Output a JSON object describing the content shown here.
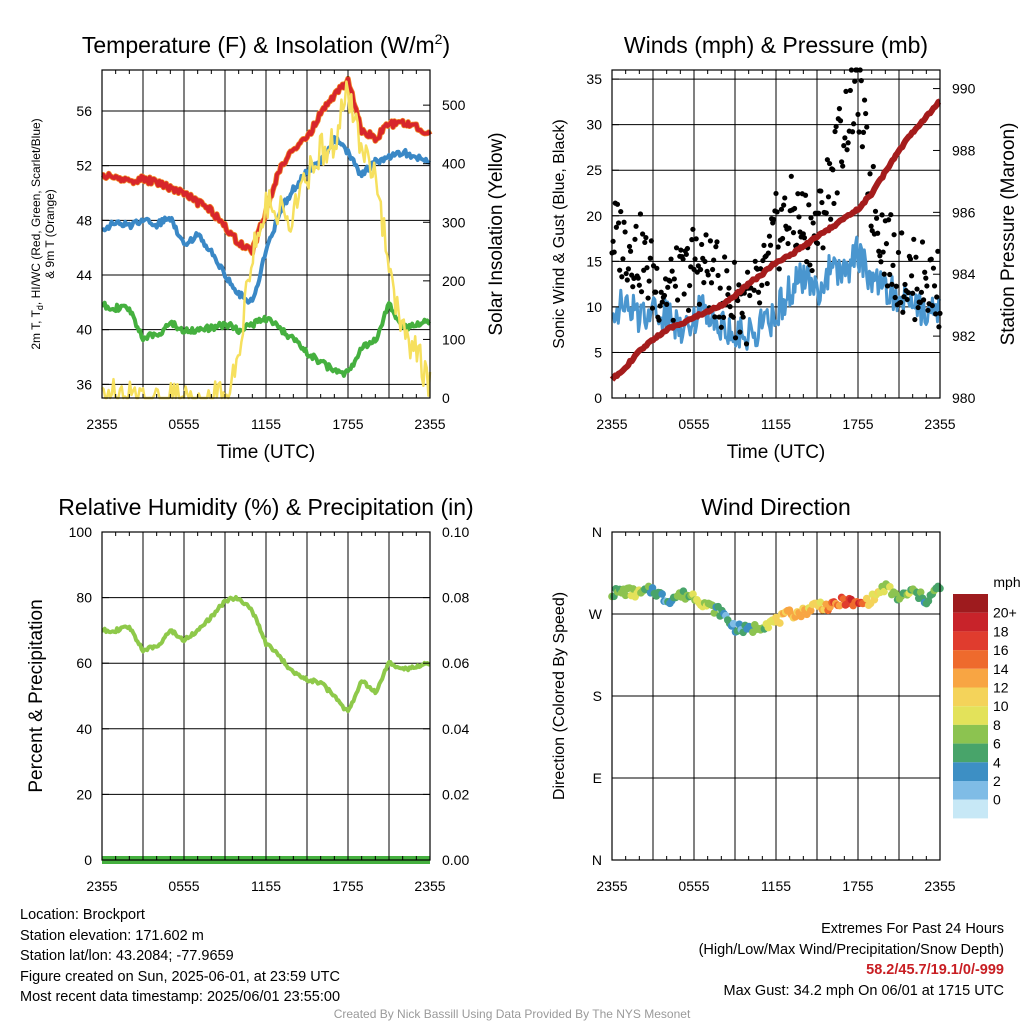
{
  "colors": {
    "temperature": "#d7262b",
    "dewpoint": "#45b03f",
    "heat_index": "#d7262b",
    "wind_chill": "#3a88c6",
    "temp_9m": "#f28c28",
    "insolation": "#f6e05e",
    "sonic_wind": "#4a96cf",
    "gust": "#000000",
    "pressure": "#a51c1c",
    "humidity": "#8ec94a",
    "precipitation": "#45b03f"
  },
  "chart_data": [
    {
      "id": "temperature",
      "type": "line",
      "title": "Temperature (F) & Insolation (W/m²)",
      "title_main": "Temperature (F) & Insolation (W/m",
      "title_sup": "2",
      "title_end": ")",
      "xlabel": "Time (UTC)",
      "ylabel_lines": [
        "2m T, T",
        "d",
        ", HI/WC (Red, Green, Scarlet/Blue)",
        "& 9m T (Orange)"
      ],
      "ylabel_right": "Solar Insolation (Yellow)",
      "x_tick_labels": [
        "2355",
        "0555",
        "1155",
        "1755",
        "2355"
      ],
      "x_range_hours": [
        0,
        24
      ],
      "ylim": [
        35,
        59
      ],
      "y_ticks": [
        36,
        40,
        44,
        48,
        52,
        56
      ],
      "ylim_right": [
        0,
        560
      ],
      "y_ticks_right": [
        0,
        100,
        200,
        300,
        400,
        500
      ],
      "grid": true,
      "series": [
        {
          "key": "temperature",
          "axis": "left",
          "x": [
            0,
            1,
            2,
            3,
            4,
            5,
            6,
            7,
            8,
            9,
            10,
            11,
            12,
            13,
            14,
            15,
            16,
            17,
            18,
            19,
            20,
            21,
            22,
            23,
            24
          ],
          "values": [
            51.3,
            51.1,
            50.9,
            51.0,
            50.8,
            50.4,
            50.0,
            49.3,
            48.7,
            47.6,
            46.3,
            45.8,
            48.6,
            51.8,
            53.2,
            54.0,
            55.8,
            57.2,
            58.2,
            54.6,
            54.0,
            55.0,
            55.1,
            54.8,
            54.3
          ]
        },
        {
          "key": "wind_chill",
          "axis": "left",
          "x": [
            0,
            1,
            2,
            3,
            4,
            5,
            6,
            7,
            8,
            9,
            10,
            11,
            12,
            13,
            14,
            15,
            16,
            17,
            18,
            19,
            20,
            21,
            22,
            23,
            24
          ],
          "values": [
            47.4,
            47.8,
            47.6,
            48.1,
            47.7,
            48.2,
            46.3,
            46.9,
            45.8,
            44.0,
            42.6,
            42.0,
            45.7,
            48.6,
            50.3,
            51.5,
            52.3,
            54.0,
            53.0,
            51.3,
            52.3,
            52.6,
            53.0,
            52.6,
            52.2
          ]
        },
        {
          "key": "dewpoint",
          "axis": "left",
          "x": [
            0,
            1,
            2,
            3,
            4,
            5,
            6,
            7,
            8,
            9,
            10,
            11,
            12,
            13,
            14,
            15,
            16,
            17,
            18,
            19,
            20,
            21,
            22,
            23,
            24
          ],
          "values": [
            41.8,
            41.6,
            41.5,
            39.4,
            39.6,
            40.5,
            39.9,
            40.0,
            40.1,
            40.4,
            40.0,
            40.4,
            40.8,
            40.1,
            39.3,
            38.3,
            37.6,
            37.0,
            36.8,
            38.8,
            39.2,
            41.8,
            40.1,
            40.4,
            40.6
          ]
        },
        {
          "key": "insolation",
          "axis": "right",
          "x": [
            0,
            1,
            2,
            3,
            4,
            5,
            6,
            7,
            8,
            9,
            10,
            11,
            12,
            13,
            14,
            15,
            16,
            17,
            18,
            19,
            20,
            21,
            22,
            23,
            24
          ],
          "values": [
            30,
            0,
            0,
            0,
            0,
            0,
            0,
            0,
            0,
            5,
            80,
            250,
            330,
            320,
            310,
            380,
            420,
            440,
            520,
            420,
            400,
            210,
            120,
            80,
            20
          ]
        }
      ]
    },
    {
      "id": "winds",
      "type": "line",
      "title": "Winds (mph) & Pressure (mb)",
      "xlabel": "Time (UTC)",
      "ylabel": "Sonic Wind & Gust (Blue, Black)",
      "ylabel_right": "Station Pressure (Maroon)",
      "x_tick_labels": [
        "2355",
        "0555",
        "1155",
        "1755",
        "2355"
      ],
      "x_range_hours": [
        0,
        24
      ],
      "ylim": [
        0,
        36
      ],
      "y_ticks": [
        0,
        5,
        10,
        15,
        20,
        25,
        30,
        35
      ],
      "ylim_right": [
        980,
        990.6
      ],
      "y_ticks_right": [
        980,
        982,
        984,
        986,
        988,
        990
      ],
      "grid": true,
      "series": [
        {
          "key": "sonic_wind",
          "axis": "left",
          "x": [
            0,
            1,
            2,
            3,
            4,
            5,
            6,
            7,
            8,
            9,
            10,
            11,
            12,
            13,
            14,
            15,
            16,
            17,
            18,
            19,
            20,
            21,
            22,
            23,
            24
          ],
          "values": [
            10,
            10,
            9,
            10,
            9,
            8,
            9,
            10,
            8,
            7,
            7,
            8,
            9,
            12,
            13,
            12,
            14,
            14,
            16,
            13,
            12,
            11,
            10,
            10,
            10
          ]
        },
        {
          "key": "gust",
          "axis": "left",
          "style": "points",
          "x": [
            0,
            1,
            2,
            3,
            4,
            5,
            6,
            7,
            8,
            9,
            10,
            11,
            12,
            13,
            14,
            15,
            16,
            17,
            18,
            19,
            20,
            21,
            22,
            23,
            24
          ],
          "values": [
            18,
            17,
            16,
            13,
            12,
            12,
            15,
            14,
            12,
            11,
            10,
            12,
            18,
            20,
            19,
            18,
            24,
            30,
            34.2,
            22,
            17,
            14,
            13,
            13,
            12
          ]
        },
        {
          "key": "pressure",
          "axis": "right",
          "x": [
            0,
            1,
            2,
            3,
            4,
            5,
            6,
            7,
            8,
            9,
            10,
            11,
            12,
            13,
            14,
            15,
            16,
            17,
            18,
            19,
            20,
            21,
            22,
            23,
            24
          ],
          "values": [
            980.6,
            981.0,
            981.5,
            981.9,
            982.2,
            982.4,
            982.6,
            982.8,
            983.0,
            983.3,
            983.7,
            984.0,
            984.4,
            984.6,
            984.9,
            985.2,
            985.5,
            985.8,
            986.1,
            986.6,
            987.3,
            988.0,
            988.6,
            989.1,
            989.6
          ]
        }
      ]
    },
    {
      "id": "humidity",
      "type": "line",
      "title": "Relative Humidity (%) & Precipitation (in)",
      "ylabel": "Percent & Precipitation",
      "x_tick_labels": [
        "2355",
        "0555",
        "1155",
        "1755",
        "2355"
      ],
      "x_range_hours": [
        0,
        24
      ],
      "ylim": [
        0,
        100
      ],
      "y_ticks": [
        0,
        20,
        40,
        60,
        80,
        100
      ],
      "ylim_right": [
        0,
        0.1
      ],
      "y_ticks_right": [
        "0.00",
        "0.02",
        "0.04",
        "0.06",
        "0.08",
        "0.10"
      ],
      "grid": true,
      "series": [
        {
          "key": "humidity",
          "axis": "left",
          "x": [
            0,
            1,
            2,
            3,
            4,
            5,
            6,
            7,
            8,
            9,
            10,
            11,
            12,
            13,
            14,
            15,
            16,
            17,
            18,
            19,
            20,
            21,
            22,
            23,
            24
          ],
          "values": [
            70,
            70,
            71,
            64,
            65,
            70,
            67,
            70,
            74,
            79,
            80,
            76,
            66,
            62,
            57,
            55,
            54,
            50,
            45,
            55,
            51,
            60,
            58,
            59,
            60
          ]
        },
        {
          "key": "precipitation",
          "axis": "right",
          "x": [
            0,
            24
          ],
          "values": [
            0,
            0
          ]
        }
      ]
    },
    {
      "id": "wind_direction",
      "type": "scatter",
      "title": "Wind Direction",
      "ylabel": "Direction (Colored By Speed)",
      "x_tick_labels": [
        "2355",
        "0555",
        "1155",
        "1755",
        "2355"
      ],
      "x_range_hours": [
        0,
        24
      ],
      "ylim": [
        0,
        360
      ],
      "y_ticks": [
        0,
        90,
        180,
        270,
        360
      ],
      "y_tick_labels": [
        "N",
        "E",
        "S",
        "W",
        "N"
      ],
      "grid": true,
      "series": [
        {
          "key": "direction",
          "x": [
            0,
            1,
            2,
            3,
            4,
            5,
            6,
            7,
            8,
            9,
            10,
            11,
            12,
            13,
            14,
            15,
            16,
            17,
            18,
            19,
            20,
            21,
            22,
            23,
            24
          ],
          "values": [
            293,
            295,
            292,
            297,
            285,
            291,
            290,
            279,
            272,
            255,
            252,
            258,
            262,
            270,
            272,
            281,
            277,
            285,
            280,
            286,
            300,
            287,
            295,
            285,
            300
          ],
          "speed": [
            8,
            9,
            10,
            7,
            5,
            8,
            9,
            10,
            6,
            5,
            6,
            9,
            12,
            15,
            14,
            12,
            16,
            18,
            19,
            13,
            10,
            9,
            8,
            7,
            6
          ]
        }
      ]
    }
  ],
  "speed_legend": {
    "title": "mph",
    "labels": [
      "20+",
      "18",
      "16",
      "14",
      "12",
      "10",
      "8",
      "6",
      "4",
      "2",
      "0"
    ],
    "colors": [
      "#9e1b1e",
      "#c8232a",
      "#e03c2e",
      "#ee6a2d",
      "#f8a543",
      "#f4d35a",
      "#e3e25a",
      "#8cc350",
      "#48a46a",
      "#3d8fc4",
      "#7fbce6",
      "#c7e8f6"
    ]
  },
  "info": {
    "location": "Location: Brockport",
    "elevation": "Station elevation: 171.602 m",
    "latlon": "Station lat/lon: 43.2084; -77.9659",
    "created": "Figure created on Sun, 2025-06-01, at 23:59 UTC",
    "recent": "Most recent data timestamp: 2025/06/01 23:55:00"
  },
  "extremes": {
    "title": "Extremes For Past 24 Hours",
    "legend": "(High/Low/Max Wind/Precipitation/Snow Depth)",
    "values": "58.2/45.7/19.1/0/-999",
    "max_gust": "Max Gust: 34.2 mph On 06/01 at 1715 UTC"
  },
  "credit": "Created By Nick Bassill Using Data Provided By The NYS Mesonet"
}
